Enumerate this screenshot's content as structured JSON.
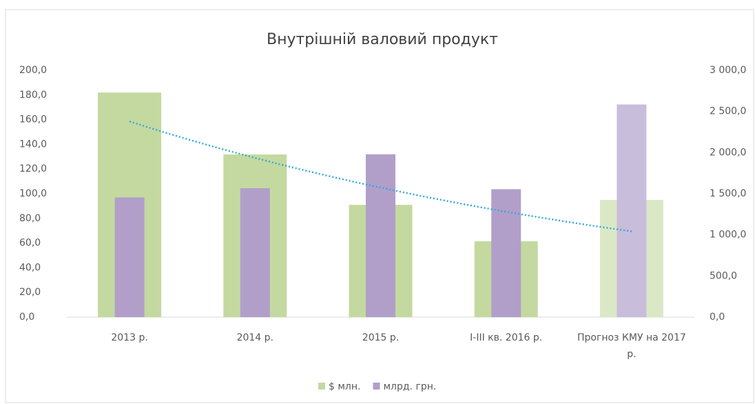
{
  "chart_data": {
    "type": "bar",
    "title": "Внутрішній валовий продукт",
    "categories": [
      "2013 р.",
      "2014 р.",
      "2015 р.",
      "I-III кв. 2016 р.",
      "Прогноз КМУ на 2017 р."
    ],
    "series": [
      {
        "name": "$ млн.",
        "color": "#c4d9a0",
        "colors": [
          "#c4d9a0",
          "#c4d9a0",
          "#c4d9a0",
          "#c4d9a0",
          "#dae8c6"
        ],
        "values": [
          182.0,
          131.8,
          91.0,
          61.5,
          95.0
        ]
      },
      {
        "name": "млрд. грн.",
        "color": "#b19fca",
        "colors": [
          "#b19fca",
          "#b19fca",
          "#b19fca",
          "#b19fca",
          "#c9bddc"
        ],
        "values": [
          1454.9,
          1566.7,
          1979.5,
          1555.0,
          2585.0
        ],
        "axis": "y2"
      }
    ],
    "trendline_color": "#2fa8d8",
    "ylim": [
      0,
      200
    ],
    "yticks": [
      {
        "value": 0,
        "label": "0,0"
      },
      {
        "value": 20,
        "label": "20,0"
      },
      {
        "value": 40,
        "label": "40,0"
      },
      {
        "value": 60,
        "label": "60,0"
      },
      {
        "value": 80,
        "label": "80,0"
      },
      {
        "value": 100,
        "label": "100,0"
      },
      {
        "value": 120,
        "label": "120,0"
      },
      {
        "value": 140,
        "label": "140,0"
      },
      {
        "value": 160,
        "label": "160,0"
      },
      {
        "value": 180,
        "label": "180,0"
      },
      {
        "value": 200,
        "label": "200,0"
      }
    ],
    "y2lim": [
      0,
      3000
    ],
    "y2ticks": [
      {
        "value": 0,
        "label": "0,0"
      },
      {
        "value": 500,
        "label": "500,0"
      },
      {
        "value": 1000,
        "label": "1 000,0"
      },
      {
        "value": 1500,
        "label": "1 500,0"
      },
      {
        "value": 2000,
        "label": "2 000,0"
      },
      {
        "value": 2500,
        "label": "2 500,0"
      },
      {
        "value": 3000,
        "label": "3 000,0"
      }
    ],
    "legend": "bottom"
  }
}
